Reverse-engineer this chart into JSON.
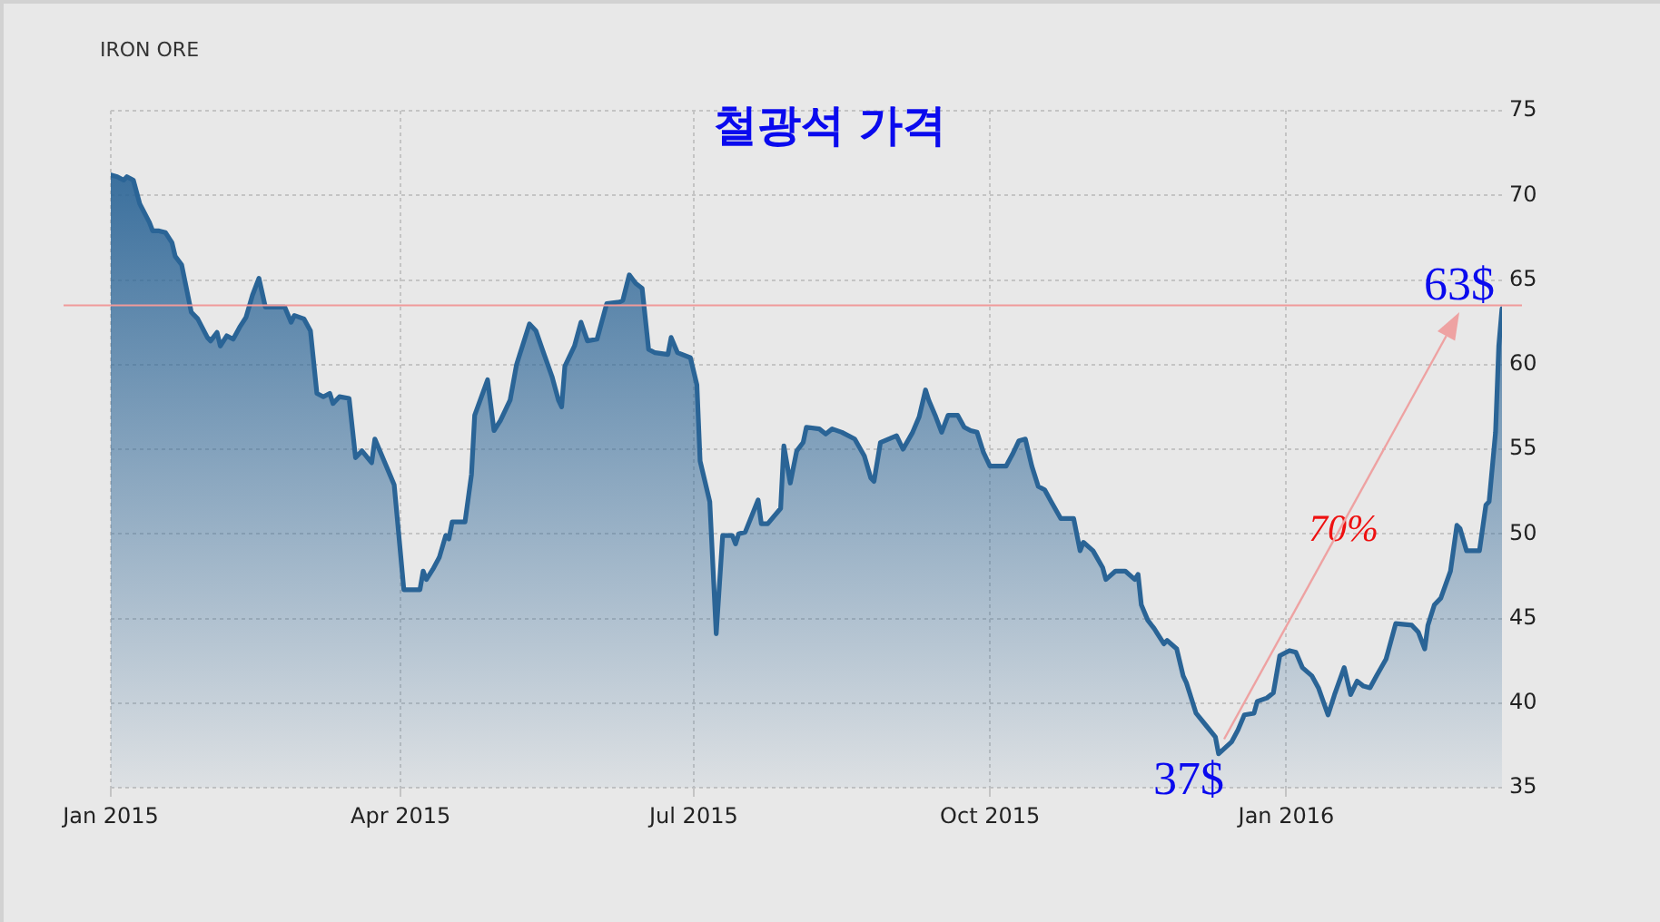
{
  "chart_data": {
    "type": "area",
    "title": "IRON ORE",
    "subtitle": "철광석 가격",
    "x": [
      "2015-01-01",
      "2015-01-03",
      "2015-01-05",
      "2015-01-06",
      "2015-01-08",
      "2015-01-10",
      "2015-01-13",
      "2015-01-14",
      "2015-01-16",
      "2015-01-18",
      "2015-01-20",
      "2015-01-21",
      "2015-01-23",
      "2015-01-26",
      "2015-01-28",
      "2015-01-31",
      "2015-02-01",
      "2015-02-03",
      "2015-02-04",
      "2015-02-06",
      "2015-02-08",
      "2015-02-10",
      "2015-02-12",
      "2015-02-14",
      "2015-02-16",
      "2015-02-18",
      "2015-02-20",
      "2015-02-24",
      "2015-02-26",
      "2015-02-27",
      "2015-03-02",
      "2015-03-04",
      "2015-03-06",
      "2015-03-08",
      "2015-03-10",
      "2015-03-11",
      "2015-03-13",
      "2015-03-16",
      "2015-03-18",
      "2015-03-20",
      "2015-03-23",
      "2015-03-24",
      "2015-03-26",
      "2015-03-28",
      "2015-03-30",
      "2015-04-02",
      "2015-04-07",
      "2015-04-08",
      "2015-04-09",
      "2015-04-11",
      "2015-04-13",
      "2015-04-15",
      "2015-04-16",
      "2015-04-17",
      "2015-04-21",
      "2015-04-23",
      "2015-04-24",
      "2015-04-28",
      "2015-04-30",
      "2015-05-02",
      "2015-05-05",
      "2015-05-07",
      "2015-05-08",
      "2015-05-11",
      "2015-05-13",
      "2015-05-15",
      "2015-05-18",
      "2015-05-20",
      "2015-05-21",
      "2015-05-22",
      "2015-05-25",
      "2015-05-27",
      "2015-05-29",
      "2015-06-01",
      "2015-06-04",
      "2015-06-08",
      "2015-06-09",
      "2015-06-11",
      "2015-06-13",
      "2015-06-15",
      "2015-06-17",
      "2015-06-19",
      "2015-06-23",
      "2015-06-24",
      "2015-06-26",
      "2015-06-30",
      "2015-07-02",
      "2015-07-03",
      "2015-07-06",
      "2015-07-08",
      "2015-07-10",
      "2015-07-13",
      "2015-07-14",
      "2015-07-15",
      "2015-07-17",
      "2015-07-21",
      "2015-07-22",
      "2015-07-24",
      "2015-07-28",
      "2015-07-29",
      "2015-07-31",
      "2015-08-02",
      "2015-08-04",
      "2015-08-05",
      "2015-08-09",
      "2015-08-11",
      "2015-08-13",
      "2015-08-16",
      "2015-08-20",
      "2015-08-23",
      "2015-08-25",
      "2015-08-26",
      "2015-08-28",
      "2015-09-02",
      "2015-09-04",
      "2015-09-07",
      "2015-09-09",
      "2015-09-11",
      "2015-09-12",
      "2015-09-14",
      "2015-09-16",
      "2015-09-18",
      "2015-09-21",
      "2015-09-23",
      "2015-09-25",
      "2015-09-27",
      "2015-09-29",
      "2015-10-01",
      "2015-10-06",
      "2015-10-08",
      "2015-10-10",
      "2015-10-12",
      "2015-10-14",
      "2015-10-16",
      "2015-10-18",
      "2015-10-20",
      "2015-10-23",
      "2015-10-27",
      "2015-10-29",
      "2015-10-30",
      "2015-11-02",
      "2015-11-05",
      "2015-11-06",
      "2015-11-09",
      "2015-11-12",
      "2015-11-15",
      "2015-11-16",
      "2015-11-17",
      "2015-11-19",
      "2015-11-21",
      "2015-11-24",
      "2015-11-25",
      "2015-11-28",
      "2015-11-30",
      "2015-12-01",
      "2015-12-04",
      "2015-12-07",
      "2015-12-10",
      "2015-12-11",
      "2015-12-15",
      "2015-12-17",
      "2015-12-19",
      "2015-12-22",
      "2015-12-23",
      "2015-12-26",
      "2015-12-28",
      "2015-12-30",
      "2016-01-02",
      "2016-01-04",
      "2016-01-06",
      "2016-01-09",
      "2016-01-11",
      "2016-01-14",
      "2016-01-16",
      "2016-01-19",
      "2016-01-21",
      "2016-01-23",
      "2016-01-25",
      "2016-01-27",
      "2016-01-29",
      "2016-02-01",
      "2016-02-04",
      "2016-02-09",
      "2016-02-11",
      "2016-02-13",
      "2016-02-14",
      "2016-02-16",
      "2016-02-18",
      "2016-02-21",
      "2016-02-23",
      "2016-02-24",
      "2016-02-26",
      "2016-03-01",
      "2016-03-03",
      "2016-03-04",
      "2016-03-06",
      "2016-03-07",
      "2016-03-08"
    ],
    "values": [
      71.2,
      71.1,
      70.9,
      71.1,
      70.9,
      69.5,
      68.4,
      67.9,
      67.9,
      67.8,
      67.2,
      66.4,
      65.9,
      63.1,
      62.7,
      61.6,
      61.4,
      61.9,
      61.1,
      61.7,
      61.5,
      62.2,
      62.8,
      64.1,
      65.1,
      63.4,
      63.4,
      63.4,
      62.5,
      62.9,
      62.7,
      62.0,
      58.3,
      58.1,
      58.3,
      57.7,
      58.1,
      58.0,
      54.5,
      54.9,
      54.2,
      55.6,
      54.7,
      53.8,
      52.9,
      46.7,
      46.7,
      47.8,
      47.3,
      47.9,
      48.6,
      49.9,
      49.7,
      50.7,
      50.7,
      53.5,
      57.0,
      59.1,
      56.1,
      56.7,
      57.9,
      60.0,
      60.6,
      62.4,
      62.0,
      60.9,
      59.3,
      57.9,
      57.5,
      59.9,
      61.1,
      62.5,
      61.4,
      61.5,
      63.6,
      63.7,
      63.8,
      65.3,
      64.8,
      64.5,
      60.9,
      60.7,
      60.6,
      61.6,
      60.7,
      60.4,
      58.8,
      54.3,
      51.9,
      44.1,
      49.9,
      49.9,
      49.4,
      50.0,
      50.1,
      52.0,
      50.6,
      50.6,
      51.5,
      55.2,
      53.0,
      54.9,
      55.4,
      56.3,
      56.2,
      55.9,
      56.2,
      56.0,
      55.6,
      54.6,
      53.3,
      53.1,
      55.4,
      55.8,
      55.0,
      56.0,
      56.9,
      58.5,
      57.9,
      57.0,
      56.0,
      57.0,
      57.0,
      56.3,
      56.1,
      56.0,
      54.8,
      54.0,
      54.0,
      54.7,
      55.5,
      55.6,
      54.0,
      52.8,
      52.6,
      51.9,
      50.9,
      50.9,
      49.0,
      49.5,
      49.0,
      48.0,
      47.3,
      47.8,
      47.8,
      47.3,
      47.6,
      45.8,
      44.9,
      44.4,
      43.5,
      43.7,
      43.2,
      41.6,
      41.2,
      39.4,
      38.7,
      38.0,
      37.0,
      37.7,
      38.4,
      39.3,
      39.4,
      40.1,
      40.3,
      40.6,
      42.8,
      43.1,
      43.0,
      42.1,
      41.6,
      40.9,
      39.3,
      40.5,
      42.1,
      40.5,
      41.3,
      41.0,
      40.9,
      41.6,
      42.6,
      44.7,
      44.6,
      44.2,
      43.2,
      44.6,
      45.8,
      46.2,
      47.8,
      50.5,
      50.3,
      49.0,
      49.0,
      51.7,
      51.9,
      56.0,
      61.1,
      63.3
    ],
    "color": "#2a6496",
    "xlim": [
      "2015-01-01",
      "2016-03-08"
    ],
    "xticks": [
      {
        "value": "2015-01-01",
        "label": "Jan 2015"
      },
      {
        "value": "2015-04-01",
        "label": "Apr 2015"
      },
      {
        "value": "2015-07-01",
        "label": "Jul 2015"
      },
      {
        "value": "2015-10-01",
        "label": "Oct 2015"
      },
      {
        "value": "2016-01-01",
        "label": "Jan 2016"
      }
    ],
    "ylim": [
      35,
      75
    ],
    "yticks": [
      35,
      40,
      45,
      50,
      55,
      60,
      65,
      70,
      75
    ],
    "grid": true,
    "legend": false,
    "ref_lines": [
      {
        "axis": "y",
        "value": 63.5,
        "color": "#f09a9a"
      }
    ],
    "annotations": [
      {
        "text": "37$",
        "x": "2015-12-11",
        "y": 37.0
      },
      {
        "text": "63$",
        "x": "2016-03-08",
        "y": 63.3
      },
      "70%"
    ]
  }
}
